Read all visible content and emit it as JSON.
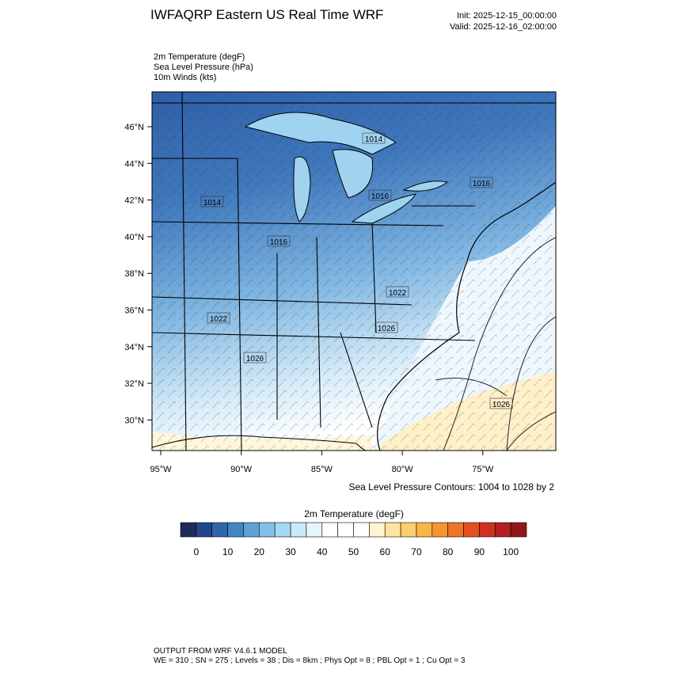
{
  "header": {
    "title": "IWFAQRP Eastern US Real Time WRF",
    "init": "Init: 2025-12-15_00:00:00",
    "valid": "Valid: 2025-12-16_02:00:00"
  },
  "fields": [
    "2m Temperature   (degF)",
    "Sea Level Pressure   (hPa)",
    "10m Winds   (kts)"
  ],
  "map": {
    "lat_labels": [
      "46°N",
      "44°N",
      "42°N",
      "40°N",
      "38°N",
      "36°N",
      "34°N",
      "32°N",
      "30°N"
    ],
    "lon_labels": [
      "95°W",
      "90°W",
      "85°W",
      "80°W",
      "75°W"
    ],
    "contour_labels": [
      "1014",
      "1014",
      "1016",
      "1016",
      "1016",
      "1022",
      "1022",
      "1026",
      "1026",
      "1026"
    ],
    "contour_note": "Sea Level Pressure Contours: 1004 to 1028 by 2"
  },
  "colorbar": {
    "title": "2m Temperature   (degF)",
    "ticks": [
      0,
      10,
      20,
      30,
      40,
      50,
      60,
      70,
      80,
      90,
      100
    ],
    "colors": [
      "#1c2b5a",
      "#21468a",
      "#2f66ad",
      "#4486c4",
      "#5da2d7",
      "#82c0e8",
      "#a8d9f4",
      "#c9e9f8",
      "#e6f5fc",
      "#ffffff",
      "#ffffff",
      "#ffffff",
      "#fff3d0",
      "#ffe4a0",
      "#fdcd70",
      "#fbb448",
      "#f7952f",
      "#f07428",
      "#e44f22",
      "#d0301f",
      "#b61f1f",
      "#931719"
    ]
  },
  "footer": {
    "line1": "OUTPUT FROM WRF V4.6.1 MODEL",
    "line2": "WE = 310 ; SN = 275 ; Levels = 38 ; Dis = 8km ; Phys Opt = 8 ; PBL Opt = 1 ; Cu Opt = 3"
  }
}
